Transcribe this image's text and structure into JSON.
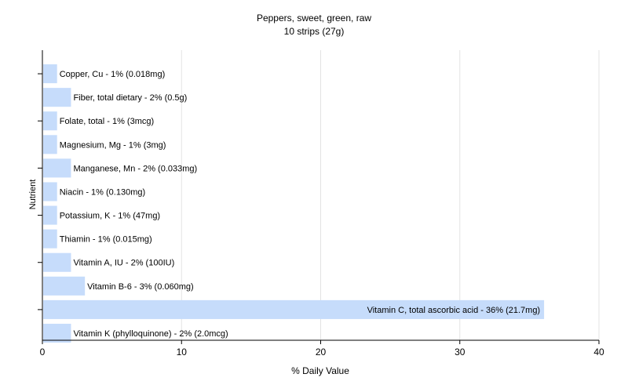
{
  "chart_data": {
    "type": "bar",
    "orientation": "horizontal",
    "title": "Peppers, sweet, green, raw",
    "subtitle": "10 strips (27g)",
    "xlabel": "% Daily Value",
    "ylabel": "Nutrient",
    "xlim": [
      0,
      40
    ],
    "xticks": [
      0,
      10,
      20,
      30,
      40
    ],
    "grid": true,
    "bar_color": "#c6dcfb",
    "categories": [
      "Copper, Cu",
      "Fiber, total dietary",
      "Folate, total",
      "Magnesium, Mg",
      "Manganese, Mn",
      "Niacin",
      "Potassium, K",
      "Thiamin",
      "Vitamin A, IU",
      "Vitamin B-6",
      "Vitamin C, total ascorbic acid",
      "Vitamin K (phylloquinone)"
    ],
    "values": [
      1,
      2,
      1,
      1,
      2,
      1,
      1,
      1,
      2,
      3,
      36,
      2
    ],
    "labels": [
      "Copper, Cu - 1% (0.018mg)",
      "Fiber, total dietary - 2% (0.5g)",
      "Folate, total - 1% (3mcg)",
      "Magnesium, Mg - 1% (3mg)",
      "Manganese, Mn - 2% (0.033mg)",
      "Niacin - 1% (0.130mg)",
      "Potassium, K - 1% (47mg)",
      "Thiamin - 1% (0.015mg)",
      "Vitamin A, IU - 2% (100IU)",
      "Vitamin B-6 - 3% (0.060mg)",
      "Vitamin C, total ascorbic acid - 36% (21.7mg)",
      "Vitamin K (phylloquinone) - 2% (2.0mcg)"
    ]
  }
}
